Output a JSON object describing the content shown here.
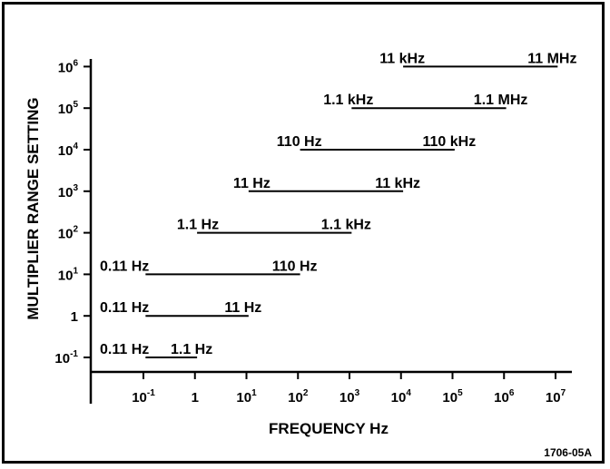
{
  "chart_data": {
    "type": "range-bar",
    "x_axis_label": "FREQUENCY Hz",
    "y_axis_label": "MULTIPLIER RANGE SETTING",
    "x_scale": "log",
    "y_scale": "log",
    "x_ticks": [
      {
        "value": 0.1,
        "label": "10",
        "sup": "-1"
      },
      {
        "value": 1,
        "label": "1",
        "sup": ""
      },
      {
        "value": 10,
        "label": "10",
        "sup": "1"
      },
      {
        "value": 100,
        "label": "10",
        "sup": "2"
      },
      {
        "value": 1000,
        "label": "10",
        "sup": "3"
      },
      {
        "value": 10000,
        "label": "10",
        "sup": "4"
      },
      {
        "value": 100000,
        "label": "10",
        "sup": "5"
      },
      {
        "value": 1000000,
        "label": "10",
        "sup": "6"
      },
      {
        "value": 10000000,
        "label": "10",
        "sup": "7"
      }
    ],
    "y_ticks": [
      {
        "value": 0.1,
        "label": "10",
        "sup": "-1"
      },
      {
        "value": 1,
        "label": "1",
        "sup": ""
      },
      {
        "value": 10,
        "label": "10",
        "sup": "1"
      },
      {
        "value": 100,
        "label": "10",
        "sup": "2"
      },
      {
        "value": 1000,
        "label": "10",
        "sup": "3"
      },
      {
        "value": 10000,
        "label": "10",
        "sup": "4"
      },
      {
        "value": 100000,
        "label": "10",
        "sup": "5"
      },
      {
        "value": 1000000,
        "label": "10",
        "sup": "6"
      }
    ],
    "ranges": [
      {
        "setting": 1000000,
        "low_hz": 11000,
        "high_hz": 11000000,
        "low_label": "11 kHz",
        "high_label": "11 MHz"
      },
      {
        "setting": 100000,
        "low_hz": 1100,
        "high_hz": 1100000,
        "low_label": "1.1 kHz",
        "high_label": "1.1 MHz"
      },
      {
        "setting": 10000,
        "low_hz": 110,
        "high_hz": 110000,
        "low_label": "110 Hz",
        "high_label": "110 kHz"
      },
      {
        "setting": 1000,
        "low_hz": 11,
        "high_hz": 11000,
        "low_label": "11 Hz",
        "high_label": "11 kHz"
      },
      {
        "setting": 100,
        "low_hz": 1.1,
        "high_hz": 1100,
        "low_label": "1.1 Hz",
        "high_label": "1.1 kHz"
      },
      {
        "setting": 10,
        "low_hz": 0.11,
        "high_hz": 110,
        "low_label": "0.11 Hz",
        "high_label": "110 Hz"
      },
      {
        "setting": 1,
        "low_hz": 0.11,
        "high_hz": 11,
        "low_label": "0.11 Hz",
        "high_label": "11 Hz"
      },
      {
        "setting": 0.1,
        "low_hz": 0.11,
        "high_hz": 1.1,
        "low_label": "0.11 Hz",
        "high_label": "1.1 Hz"
      }
    ],
    "figure_id": "1706-05A"
  }
}
